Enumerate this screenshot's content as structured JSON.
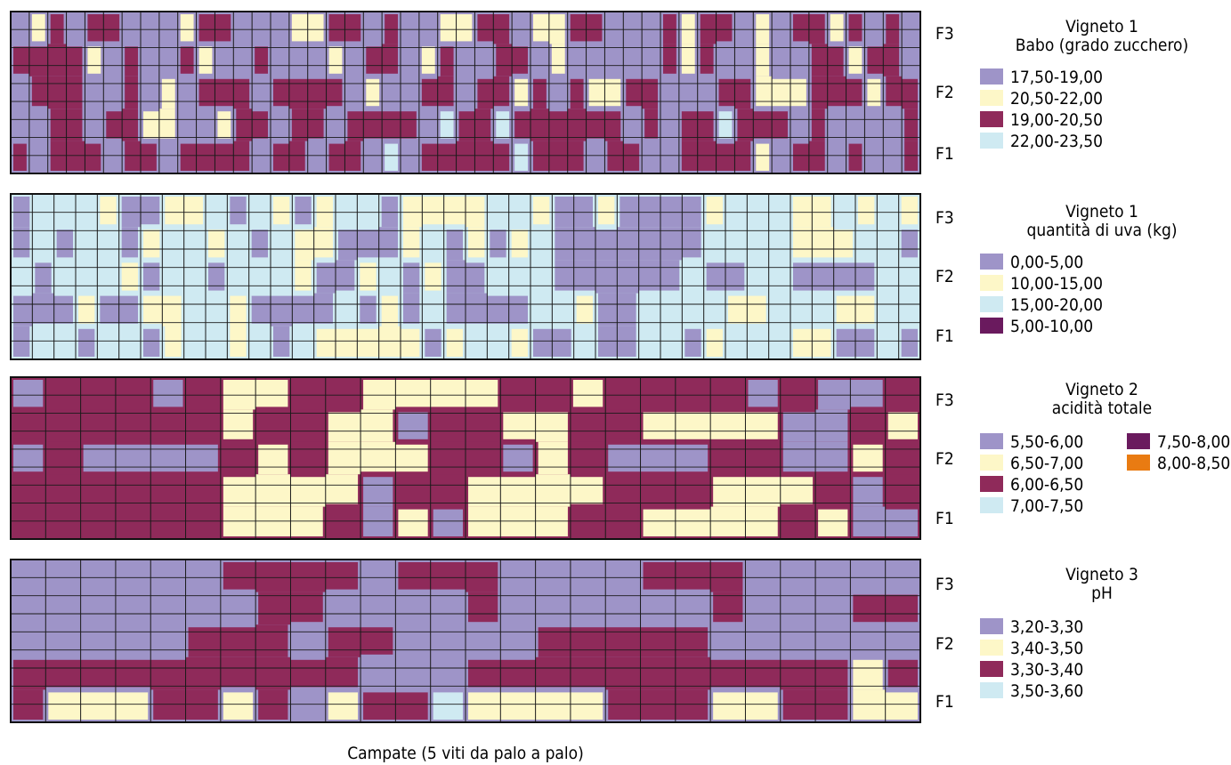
{
  "chart_data": [
    {
      "type": "heatmap",
      "legend_title": [
        "Vigneto 1",
        "Babo (grado zucchero)"
      ],
      "rows": [
        "F3",
        "F2",
        "F1"
      ],
      "legend": [
        {
          "label": "17,50-19,00",
          "color": "#9e94c8"
        },
        {
          "label": "20,50-22,00",
          "color": "#fdf7c8"
        },
        {
          "label": "19,00-20,50",
          "color": "#8f2a5a"
        },
        {
          "label": "22,00-23,50",
          "color": "#cfeaf2"
        }
      ],
      "columns": 49,
      "base": 0,
      "pattern": "0120220001220001122020011220112200021220102212020,2222102002100200010220120022010000021200100221220,0222002010222022220100220221202112200022111222122,0022022110012202202222032232222220202232220200002,2022202202222022022030222223222022002222102202002"
    },
    {
      "type": "heatmap",
      "legend_title": [
        "Vigneto 1",
        "quantità di uva (kg)"
      ],
      "rows": [
        "F3",
        "F2",
        "F1"
      ],
      "legend": [
        {
          "label": "0,00-5,00",
          "color": "#9e94c8"
        },
        {
          "label": "10,00-15,00",
          "color": "#fdf7c8"
        },
        {
          "label": "15,00-20,00",
          "color": "#cfeaf2"
        },
        {
          "label": "5,00-10,00",
          "color": "#6a1a5e"
        }
      ],
      "columns": 42,
      "base": 2,
      "pattern": "022210011202101220111122100100001222112121,020220122120211000120101200000002222111220,202221022022210012010022200000020022000022,000100112210000201020000221002222112221122,022022012212021111101221002002201222110020"
    },
    {
      "type": "heatmap",
      "legend_title": [
        "Vigneto 2",
        "acidità totale"
      ],
      "rows": [
        "F3",
        "F2",
        "F1"
      ],
      "legend": [
        {
          "label": "5,50-6,00",
          "color": "#9e94c8"
        },
        {
          "label": "6,50-7,00",
          "color": "#fdf7c8"
        },
        {
          "label": "6,00-6,50",
          "color": "#8f2a5a"
        },
        {
          "label": "7,00-7,50",
          "color": "#cfeaf2"
        },
        {
          "label": "7,50-8,00",
          "color": "#6a1a5e"
        },
        {
          "label": "8,00-8,50",
          "color": "#e97b12"
        }
      ],
      "columns": 26,
      "base": 2,
      "pattern": "02220211221111221222202002,22222212211022112211110021,02000021211122012000220012,22222211110221111222111202,22222211120101112211112100"
    },
    {
      "type": "heatmap",
      "legend_title": [
        "Vigneto 3",
        "pH"
      ],
      "rows": [
        "F3",
        "F2",
        "F1"
      ],
      "legend": [
        {
          "label": "3,20-3,30",
          "color": "#9e94c8"
        },
        {
          "label": "3,40-3,50",
          "color": "#fdf7c8"
        },
        {
          "label": "3,30-3,40",
          "color": "#8f2a5a"
        },
        {
          "label": "3,50-3,60",
          "color": "#cfeaf2"
        }
      ],
      "columns": 26,
      "base": 0,
      "pattern": "00000022220222000022200000,00000002200002000000200022,00000222022000022222000000,22222222220002222222222212,21112212012231111222112211"
    }
  ],
  "xlabel": "Campate (5 viti da palo a palo)"
}
